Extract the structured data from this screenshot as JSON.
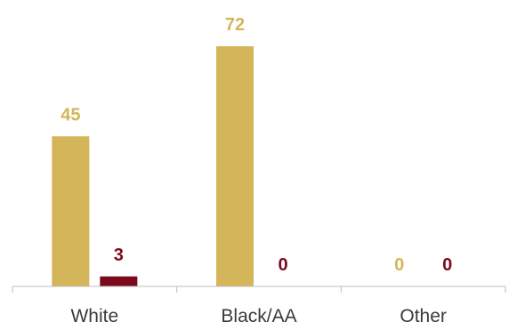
{
  "chart_data": {
    "type": "bar",
    "categories": [
      "White",
      "Black/AA",
      "Other"
    ],
    "series": [
      {
        "values": [
          45,
          72,
          0
        ],
        "color": "#D4B55A"
      },
      {
        "values": [
          3,
          0,
          0
        ],
        "color": "#7B0A1E"
      }
    ],
    "ylim": [
      0,
      80
    ],
    "grid": false,
    "legend": "none",
    "data_labels": true,
    "axis_color": "#BFBFBF"
  }
}
